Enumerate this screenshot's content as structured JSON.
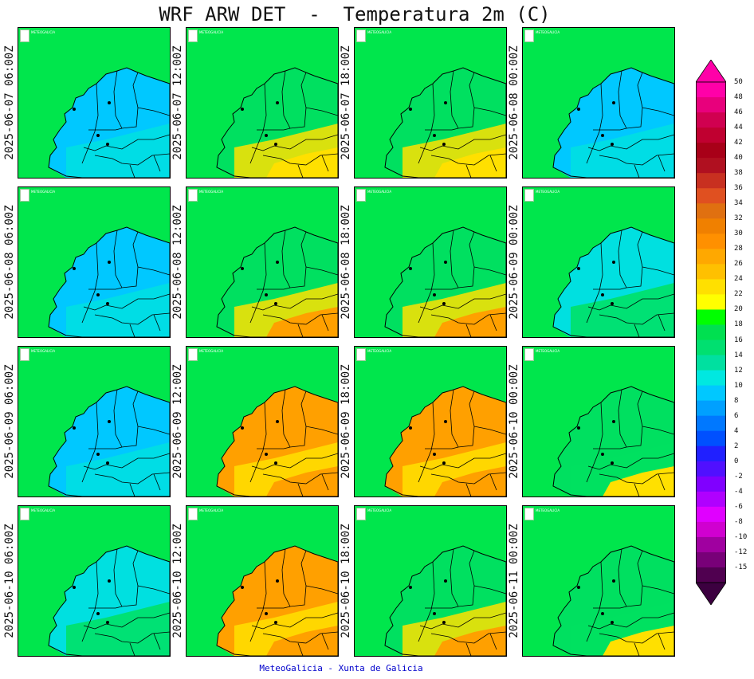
{
  "title": "WRF ARW DET  -  Temperatura 2m (C)",
  "footer": "MeteoGalicia - Xunta de Galicia",
  "logo_text": "METEOGALICIA",
  "panels": [
    {
      "label": "2025-06-07 06:00Z",
      "fill": "cold"
    },
    {
      "label": "2025-06-07 12:00Z",
      "fill": "warm1"
    },
    {
      "label": "2025-06-07 18:00Z",
      "fill": "warm1"
    },
    {
      "label": "2025-06-08 00:00Z",
      "fill": "cold"
    },
    {
      "label": "2025-06-08 06:00Z",
      "fill": "cold"
    },
    {
      "label": "2025-06-08 12:00Z",
      "fill": "warm2"
    },
    {
      "label": "2025-06-08 18:00Z",
      "fill": "warm2"
    },
    {
      "label": "2025-06-09 00:00Z",
      "fill": "cool"
    },
    {
      "label": "2025-06-09 06:00Z",
      "fill": "cold"
    },
    {
      "label": "2025-06-09 12:00Z",
      "fill": "hot"
    },
    {
      "label": "2025-06-09 18:00Z",
      "fill": "hot"
    },
    {
      "label": "2025-06-10 00:00Z",
      "fill": "mild"
    },
    {
      "label": "2025-06-10 06:00Z",
      "fill": "cool"
    },
    {
      "label": "2025-06-10 12:00Z",
      "fill": "hot"
    },
    {
      "label": "2025-06-10 18:00Z",
      "fill": "warm2"
    },
    {
      "label": "2025-06-11 00:00Z",
      "fill": "mild"
    }
  ],
  "colorbar": {
    "ticks": [
      "50",
      "48",
      "46",
      "44",
      "42",
      "40",
      "38",
      "36",
      "34",
      "32",
      "30",
      "28",
      "26",
      "24",
      "22",
      "20",
      "18",
      "16",
      "14",
      "12",
      "10",
      "8",
      "6",
      "4",
      "2",
      "0",
      "-2",
      "-4",
      "-6",
      "-8",
      "-10",
      "-12",
      "-15"
    ],
    "colors": [
      "#ff00a8",
      "#e8007c",
      "#d00050",
      "#c00030",
      "#a80018",
      "#b01020",
      "#c83020",
      "#e05020",
      "#e07010",
      "#f08000",
      "#ff9000",
      "#ffa800",
      "#ffc000",
      "#ffe000",
      "#ffff00",
      "#00ff00",
      "#00e050",
      "#00e070",
      "#00e0a0",
      "#00e8e0",
      "#00c8ff",
      "#00a0ff",
      "#0078ff",
      "#0050ff",
      "#2020ff",
      "#5010ff",
      "#8000ff",
      "#b000ff",
      "#e000ff",
      "#d000d0",
      "#a000a0",
      "#780078",
      "#500050"
    ],
    "top_color": "#ff00a8",
    "bottom_color": "#3c0040"
  },
  "palette": {
    "sea": "#00e64c",
    "cold": "#00c8ff",
    "cool": "#00e0e0",
    "mild": "#00e060",
    "yellow": "#ffe000",
    "orange": "#ffa000"
  }
}
